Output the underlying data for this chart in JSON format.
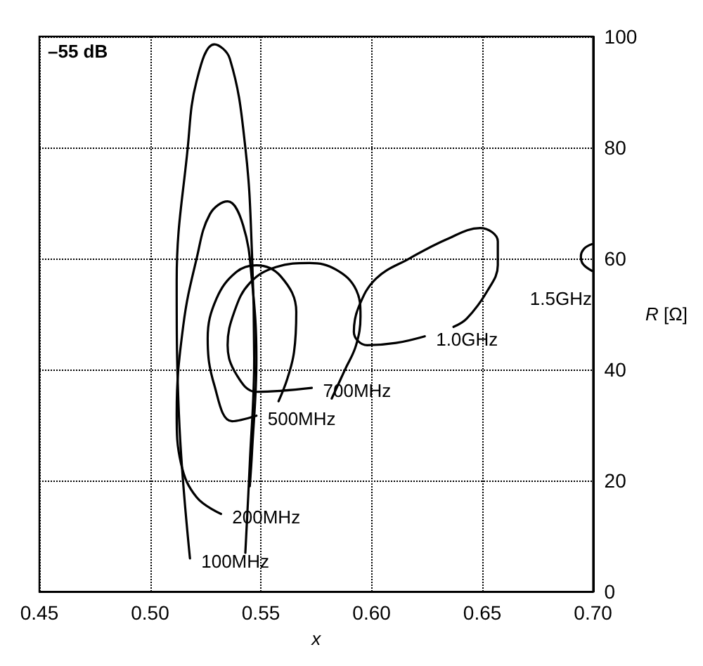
{
  "chart_data": {
    "type": "line",
    "xlabel": "x",
    "ylabel": "R [Ω]",
    "annotations": [
      "–55 dB"
    ],
    "xlim": [
      0.45,
      0.7
    ],
    "xticks": [
      0.45,
      {
        "value": 0.5,
        "label": "0.50"
      },
      0.55,
      {
        "value": 0.6,
        "label": "0.60"
      },
      0.65,
      {
        "value": 0.7,
        "label": "0.70"
      }
    ],
    "ylim": [
      0,
      100
    ],
    "yticks": [
      0,
      20,
      40,
      60,
      80,
      100
    ],
    "grid": true,
    "marker": "none",
    "line_style": "solid",
    "series": [
      {
        "name": "100MHz",
        "color": "#000000",
        "x": [
          0.543,
          0.545,
          0.547,
          0.546,
          0.543,
          0.536,
          0.529,
          0.521,
          0.517,
          0.512,
          0.513,
          0.518
        ],
        "values": [
          7,
          23,
          42,
          61,
          80,
          96,
          98.6,
          92,
          80,
          56,
          32,
          6
        ]
      },
      {
        "name": "200MHz",
        "color": "#000000",
        "x": [
          0.545,
          0.546,
          0.548,
          0.546,
          0.542,
          0.535,
          0.527,
          0.521,
          0.515,
          0.512,
          0.514,
          0.521,
          0.532
        ],
        "values": [
          19,
          25,
          42,
          56,
          66,
          70.3,
          68,
          60,
          48,
          32,
          23,
          17,
          14
        ]
      },
      {
        "name": "500MHz",
        "color": "#000000",
        "x": [
          0.558,
          0.562,
          0.565,
          0.566,
          0.559,
          0.548,
          0.539,
          0.53,
          0.526,
          0.529,
          0.537,
          0.548
        ],
        "values": [
          34.3,
          38.4,
          43.2,
          50.4,
          56.8,
          58.8,
          57.6,
          52.8,
          45.6,
          37.2,
          30.7,
          31.7
        ]
      },
      {
        "name": "700MHz",
        "color": "#000000",
        "x": [
          0.582,
          0.588,
          0.593,
          0.595,
          0.593,
          0.584,
          0.572,
          0.557,
          0.545,
          0.538,
          0.535,
          0.539,
          0.548,
          0.573
        ],
        "values": [
          34.8,
          40,
          44.4,
          49.6,
          54.4,
          58,
          59.2,
          58.5,
          55.6,
          50.4,
          44.4,
          39.1,
          36,
          36.7
        ]
      },
      {
        "name": "1.0GHz",
        "color": "#000000",
        "x": [
          0.637,
          0.643,
          0.652,
          0.657,
          0.657,
          0.649,
          0.634,
          0.617,
          0.602,
          0.594,
          0.592,
          0.598,
          0.611,
          0.624
        ],
        "values": [
          47.7,
          49.2,
          54,
          58.8,
          63.1,
          65.5,
          63.5,
          60,
          56.4,
          51.1,
          46.8,
          44.4,
          44.8,
          46
        ]
      },
      {
        "name": "1.5GHz",
        "color": "#000000",
        "x": [
          0.6995,
          0.696,
          0.6945,
          0.6955,
          0.6995
        ],
        "values": [
          62.6,
          61.8,
          60.4,
          59,
          57.8
        ]
      }
    ]
  }
}
